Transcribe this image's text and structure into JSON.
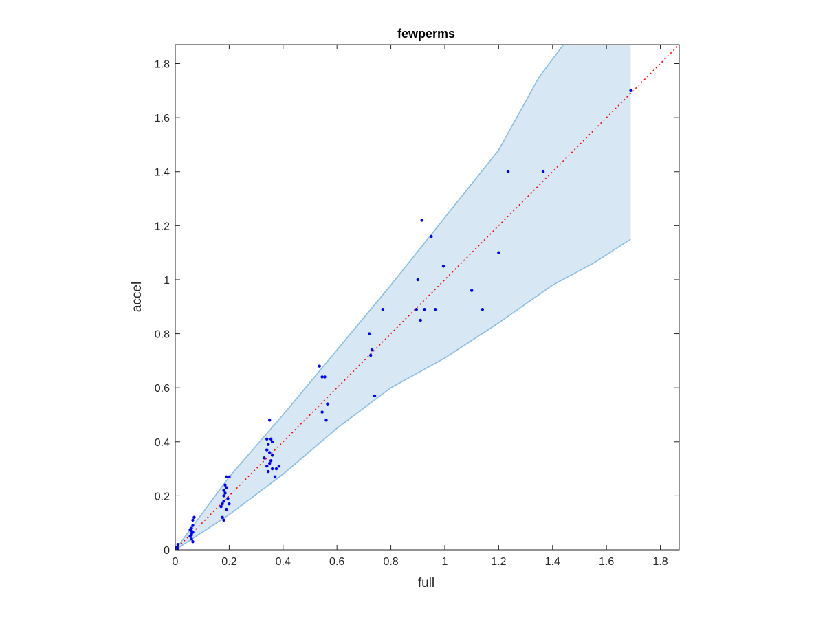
{
  "chart_data": {
    "type": "scatter",
    "title": "fewperms",
    "xlabel": "full",
    "ylabel": "accel",
    "xlim": [
      0,
      1.87
    ],
    "ylim": [
      0,
      1.87
    ],
    "xticks": [
      0,
      0.2,
      0.4,
      0.6,
      0.8,
      1,
      1.2,
      1.4,
      1.6,
      1.8
    ],
    "yticks": [
      0,
      0.2,
      0.4,
      0.6,
      0.8,
      1,
      1.2,
      1.4,
      1.6,
      1.8
    ],
    "xtick_labels": [
      "0",
      "0.2",
      "0.4",
      "0.6",
      "0.8",
      "1",
      "1.2",
      "1.4",
      "1.6",
      "1.8"
    ],
    "ytick_labels": [
      "0",
      "0.2",
      "0.4",
      "0.6",
      "0.8",
      "1",
      "1.2",
      "1.4",
      "1.6",
      "1.8"
    ],
    "grid": false,
    "colors": {
      "points": "#0000ff",
      "band_fill": "#d7e7f4",
      "band_edge": "#87bde3",
      "reference_line": "#ff0000",
      "axes": "#262626"
    },
    "band": {
      "upper": [
        [
          0,
          0
        ],
        [
          0.2,
          0.27
        ],
        [
          0.4,
          0.5
        ],
        [
          0.6,
          0.74
        ],
        [
          0.8,
          0.98
        ],
        [
          1.0,
          1.23
        ],
        [
          1.2,
          1.48
        ],
        [
          1.35,
          1.75
        ],
        [
          1.44,
          1.87
        ]
      ],
      "lower": [
        [
          0,
          0
        ],
        [
          0.2,
          0.13
        ],
        [
          0.4,
          0.28
        ],
        [
          0.6,
          0.45
        ],
        [
          0.8,
          0.6
        ],
        [
          1.0,
          0.71
        ],
        [
          1.2,
          0.84
        ],
        [
          1.4,
          0.98
        ],
        [
          1.55,
          1.06
        ],
        [
          1.69,
          1.15
        ]
      ],
      "right_x": 1.69,
      "top_clip": 1.87
    },
    "reference_line": {
      "style": "dotted",
      "from": [
        0,
        0
      ],
      "to": [
        1.87,
        1.87
      ]
    },
    "points": [
      [
        0.0,
        0.0
      ],
      [
        0.005,
        0.01
      ],
      [
        0.01,
        0.02
      ],
      [
        0.01,
        0.005
      ],
      [
        0.055,
        0.05
      ],
      [
        0.06,
        0.06
      ],
      [
        0.06,
        0.07
      ],
      [
        0.06,
        0.08
      ],
      [
        0.065,
        0.09
      ],
      [
        0.065,
        0.11
      ],
      [
        0.07,
        0.12
      ],
      [
        0.06,
        0.04
      ],
      [
        0.065,
        0.03
      ],
      [
        0.055,
        0.075
      ],
      [
        0.065,
        0.065
      ],
      [
        0.06,
        0.055
      ],
      [
        0.17,
        0.16
      ],
      [
        0.175,
        0.17
      ],
      [
        0.18,
        0.18
      ],
      [
        0.18,
        0.2
      ],
      [
        0.18,
        0.22
      ],
      [
        0.185,
        0.24
      ],
      [
        0.19,
        0.27
      ],
      [
        0.2,
        0.27
      ],
      [
        0.175,
        0.12
      ],
      [
        0.18,
        0.11
      ],
      [
        0.19,
        0.15
      ],
      [
        0.195,
        0.19
      ],
      [
        0.2,
        0.17
      ],
      [
        0.185,
        0.21
      ],
      [
        0.19,
        0.23
      ],
      [
        0.33,
        0.34
      ],
      [
        0.34,
        0.37
      ],
      [
        0.345,
        0.39
      ],
      [
        0.34,
        0.41
      ],
      [
        0.35,
        0.48
      ],
      [
        0.355,
        0.41
      ],
      [
        0.36,
        0.4
      ],
      [
        0.35,
        0.36
      ],
      [
        0.35,
        0.32
      ],
      [
        0.355,
        0.33
      ],
      [
        0.345,
        0.29
      ],
      [
        0.36,
        0.3
      ],
      [
        0.37,
        0.27
      ],
      [
        0.375,
        0.3
      ],
      [
        0.385,
        0.31
      ],
      [
        0.36,
        0.35
      ],
      [
        0.34,
        0.31
      ],
      [
        0.535,
        0.68
      ],
      [
        0.545,
        0.64
      ],
      [
        0.555,
        0.64
      ],
      [
        0.545,
        0.51
      ],
      [
        0.56,
        0.48
      ],
      [
        0.565,
        0.54
      ],
      [
        0.72,
        0.8
      ],
      [
        0.725,
        0.72
      ],
      [
        0.73,
        0.74
      ],
      [
        0.74,
        0.57
      ],
      [
        0.77,
        0.89
      ],
      [
        0.895,
        0.89
      ],
      [
        0.9,
        1.0
      ],
      [
        0.91,
        0.85
      ],
      [
        0.915,
        1.22
      ],
      [
        0.925,
        0.89
      ],
      [
        0.95,
        1.16
      ],
      [
        0.965,
        0.89
      ],
      [
        0.995,
        1.05
      ],
      [
        1.1,
        0.96
      ],
      [
        1.14,
        0.89
      ],
      [
        1.2,
        1.1
      ],
      [
        1.235,
        1.4
      ],
      [
        1.365,
        1.4
      ],
      [
        1.69,
        1.7
      ]
    ]
  }
}
